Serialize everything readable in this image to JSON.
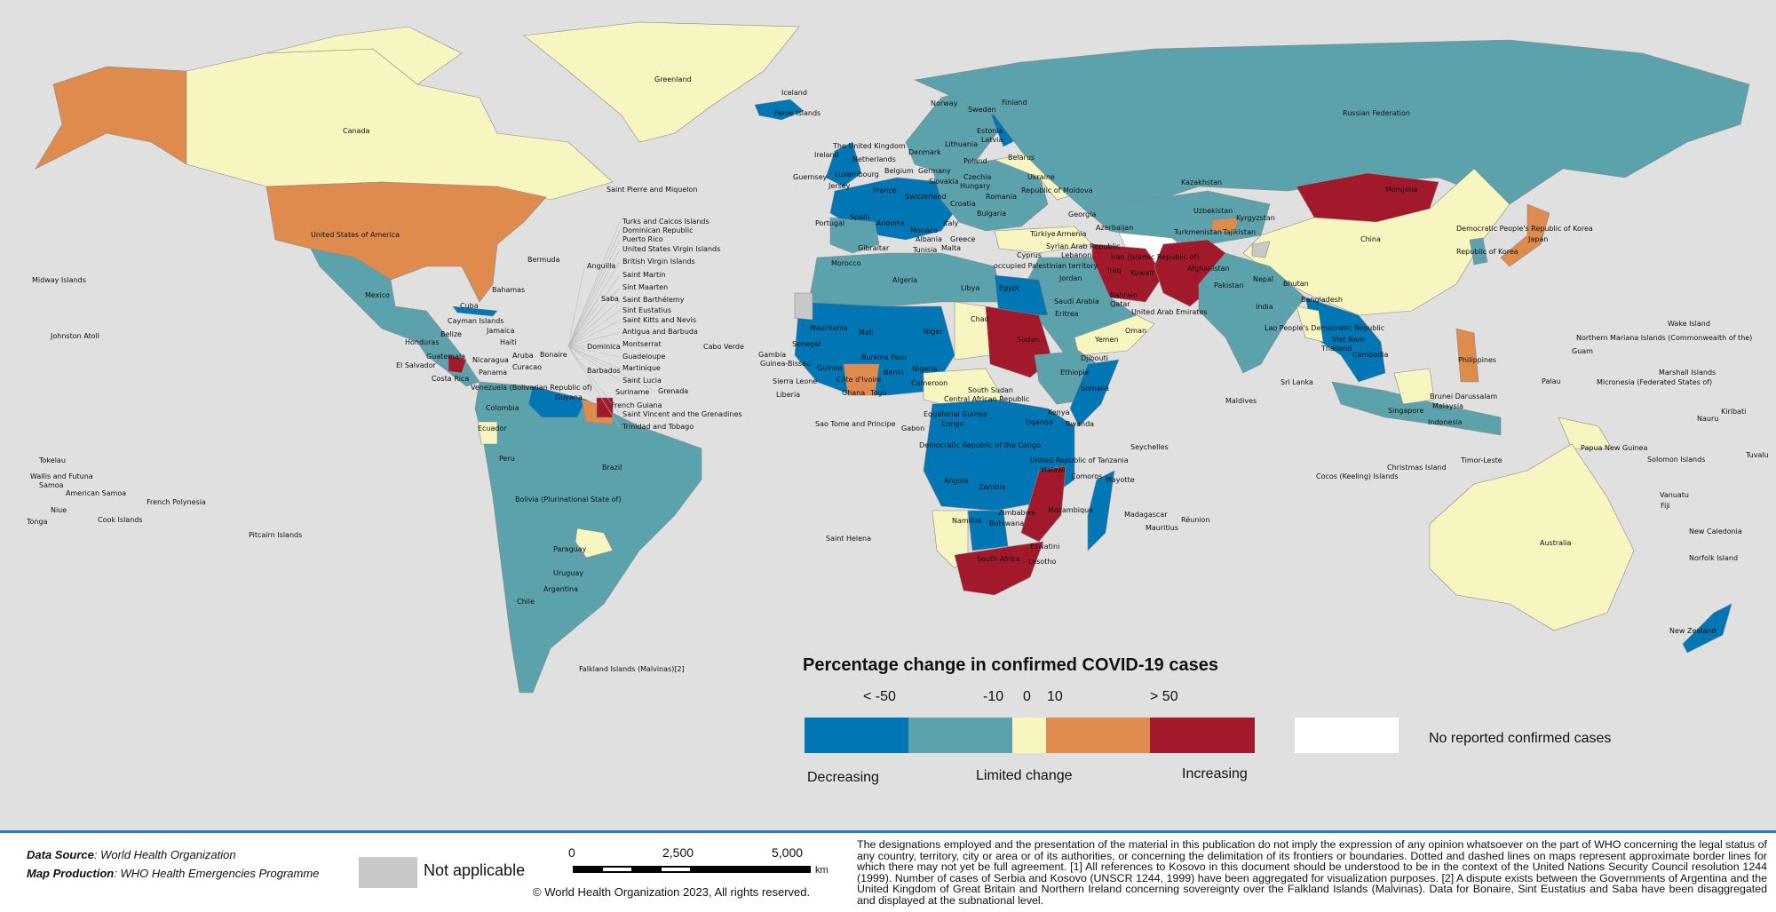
{
  "legend": {
    "title": "Percentage change in confirmed COVID-19 cases",
    "ticks": [
      "< -50",
      "-10",
      "0",
      "10",
      "> 50"
    ],
    "categories": [
      "Decreasing",
      "Limited change",
      "Increasing"
    ],
    "no_cases_label": "No reported confirmed cases",
    "colors": {
      "lt_minus50": "#0077b4",
      "minus50_to_minus10": "#5ba2ad",
      "minus10_to_10": "#f7f6c0",
      "10_to_50": "#e08b4e",
      "gt_50": "#a3192c",
      "no_cases": "#ffffff",
      "not_applicable": "#c8c8c8",
      "background": "#e0e0e0"
    }
  },
  "footer": {
    "data_source_label": "Data Source",
    "data_source": ": World Health Organization",
    "map_production_label": "Map Production",
    "map_production": ": WHO Health Emergencies Programme",
    "not_applicable": "Not applicable",
    "scale": [
      "0",
      "2,500",
      "5,000"
    ],
    "scale_unit": "km",
    "copyright": "© World Health Organization  2023,  All rights reserved.",
    "disclaimer": "The designations employed and the presentation of the material in this publication do not imply the expression of any opinion whatsoever on the part of WHO concerning the legal status of any country, territory, city or area or of its authorities, or concerning the delimitation of its frontiers or boundaries. Dotted and dashed lines on maps represent approximate border lines for which there may not yet be full agreement. [1] All references to Kosovo in this document should be understood to be in the context of the United Nations Security Council resolution 1244 (1999). Number of cases of Serbia and Kosovo (UNSCR 1244, 1999) have been aggregated for visualization purposes. [2] A dispute exists between the Governments of Argentina and the United Kingdom of Great Britain and Northern Ireland concerning sovereignty over the Falkland Islands (Malvinas). Data for Bonaire, Sint Eustatius and Saba have been disaggregated and displayed at the subnational level."
  },
  "labels": [
    "Greenland",
    "Canada",
    "Iceland",
    "Faroe Islands",
    "Russian Federation",
    "Norway",
    "Sweden",
    "Finland",
    "Estonia",
    "Latvia",
    "Lithuania",
    "Denmark",
    "The United Kingdom",
    "Ireland",
    "Netherlands",
    "Belgium",
    "Germany",
    "Poland",
    "Belarus",
    "Ukraine",
    "Czechia",
    "Slovakia",
    "Hungary",
    "Republic of Moldova",
    "Romania",
    "Luxembourg",
    "France",
    "Switzerland",
    "Guernsey",
    "Jersey",
    "Spain",
    "Portugal",
    "Andorra",
    "Monaco",
    "Italy",
    "Croatia",
    "Bulgaria",
    "Greece",
    "Albania",
    "Malta",
    "Gibraltar",
    "Türkiye",
    "Georgia",
    "Armenia",
    "Azerbaijan",
    "Kazakhstan",
    "Uzbekistan",
    "Turkmenistan",
    "Kyrgyzstan",
    "Tajikistan",
    "Mongolia",
    "China",
    "Democratic People's Republic of Korea",
    "Republic of Korea",
    "Japan",
    "Afghanistan",
    "Pakistan",
    "Iran (Islamic Republic of)",
    "Iraq",
    "Kuwait",
    "Syrian Arab Republic",
    "Lebanon",
    "Cyprus",
    "occupied Palestinian territory",
    "Jordan",
    "Saudi Arabia",
    "Bahrain",
    "Qatar",
    "United Arab Emirates",
    "Oman",
    "Yemen",
    "Nepal",
    "Bhutan",
    "India",
    "Bangladesh",
    "Sri Lanka",
    "Maldives",
    "Lao People's Democratic Republic",
    "Viet Nam",
    "Thailand",
    "Cambodia",
    "Philippines",
    "Brunei Darussalam",
    "Malaysia",
    "Singapore",
    "Indonesia",
    "Timor-Leste",
    "Papua New Guinea",
    "Christmas Island",
    "Cocos (Keeling) Islands",
    "Australia",
    "New Zealand",
    "Solomon Islands",
    "Vanuatu",
    "Fiji",
    "New Caledonia",
    "Norfolk Island",
    "Palau",
    "Guam",
    "Northern Mariana Islands (Commonwealth of the)",
    "Micronesia (Federated States of)",
    "Marshall Islands",
    "Wake Island",
    "Kiribati",
    "Nauru",
    "Tuvalu",
    "Morocco",
    "Algeria",
    "Tunisia",
    "Libya",
    "Egypt",
    "Mauritania",
    "Mali",
    "Niger",
    "Chad",
    "Sudan",
    "Eritrea",
    "Djibouti",
    "Ethiopia",
    "Somalia",
    "Senegal",
    "Gambia",
    "Guinea-Bissau",
    "Guinea",
    "Sierra Leone",
    "Liberia",
    "Côte d'Ivoire",
    "Burkina Faso",
    "Ghana",
    "Togo",
    "Benin",
    "Nigeria",
    "Cameroon",
    "Central African Republic",
    "South Sudan",
    "Uganda",
    "Kenya",
    "Equatorial Guinea",
    "Gabon",
    "Congo",
    "Democratic Republic of the Congo",
    "Rwanda",
    "United Republic of Tanzania",
    "Angola",
    "Zambia",
    "Malawi",
    "Mozambique",
    "Zimbabwe",
    "Namibia",
    "Botswana",
    "South Africa",
    "Eswatini",
    "Lesotho",
    "Madagascar",
    "Comoros",
    "Mayotte",
    "Réunion",
    "Mauritius",
    "Seychelles",
    "Cabo Verde",
    "Sao Tome and Principe",
    "Saint Helena",
    "United States of America",
    "Mexico",
    "Bermuda",
    "Bahamas",
    "Cuba",
    "Cayman Islands",
    "Jamaica",
    "Haiti",
    "Belize",
    "Honduras",
    "Guatemala",
    "El Salvador",
    "Nicaragua",
    "Costa Rica",
    "Panama",
    "Aruba",
    "Curacao",
    "Bonaire",
    "Venezuela (Bolivarian Republic of)",
    "Guyana",
    "Suriname",
    "French Guiana",
    "Colombia",
    "Ecuador",
    "Peru",
    "Brazil",
    "Bolivia (Plurinational State of)",
    "Paraguay",
    "Uruguay",
    "Argentina",
    "Chile",
    "Falkland Islands (Malvinas)[2]",
    "Saint Pierre and Miquelon",
    "Midway Islands",
    "Johnston Atoll",
    "Tokelau",
    "Wallis and Futuna",
    "Samoa",
    "American Samoa",
    "Niue",
    "Tonga",
    "Cook Islands",
    "French Polynesia",
    "Pitcairn Islands",
    "Turks and Caicos Islands",
    "Dominican Republic",
    "Puerto Rico",
    "United States Virgin Islands",
    "British Virgin Islands",
    "Anguilla",
    "Saint Martin",
    "Sint Maarten",
    "Saint Barthélemy",
    "Saba",
    "Sint Eustatius",
    "Saint Kitts and Nevis",
    "Antigua and Barbuda",
    "Montserrat",
    "Guadeloupe",
    "Dominica",
    "Martinique",
    "Saint Lucia",
    "Barbados",
    "Saint Vincent and the Grenadines",
    "Grenada",
    "Trinidad and Tobago"
  ]
}
